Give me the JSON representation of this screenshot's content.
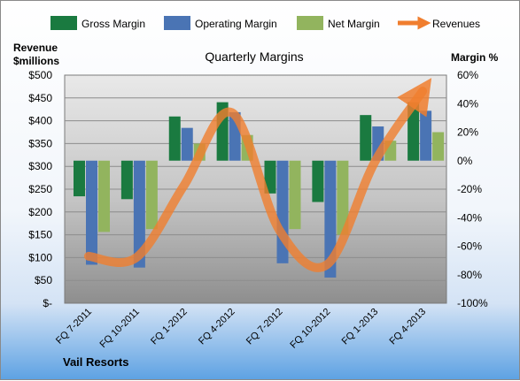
{
  "chart_data": {
    "type": "bar",
    "title": "Quarterly Margins",
    "company": "Vail Resorts",
    "categories": [
      "FQ 7-2011",
      "FQ 10-2011",
      "FQ 1-2012",
      "FQ 4-2012",
      "FQ 7-2012",
      "FQ 10-2012",
      "FQ 1-2013",
      "FQ 4-2013"
    ],
    "series": [
      {
        "name": "Gross Margin",
        "axis": "right",
        "color": "#1a7a40",
        "values": [
          -25,
          -27,
          31,
          41,
          -23,
          -29,
          32,
          41
        ]
      },
      {
        "name": "Operating Margin",
        "axis": "right",
        "color": "#4a74b4",
        "values": [
          -73,
          -75,
          23,
          34,
          -72,
          -82,
          24,
          35
        ]
      },
      {
        "name": "Net Margin",
        "axis": "right",
        "color": "#92b45e",
        "values": [
          -50,
          -48,
          12,
          18,
          -48,
          -52,
          14,
          20
        ]
      },
      {
        "name": "Revenues",
        "axis": "left",
        "type": "line",
        "color": "#f07e2e",
        "values": [
          103,
          100,
          258,
          418,
          160,
          85,
          310,
          465
        ]
      }
    ],
    "left_axis": {
      "label_line1": "Revenue",
      "label_line2": "$millions",
      "range": [
        0,
        500
      ],
      "ticks": [
        "$-",
        "$50",
        "$100",
        "$150",
        "$200",
        "$250",
        "$300",
        "$350",
        "$400",
        "$450",
        "$500"
      ]
    },
    "right_axis": {
      "label": "Margin %",
      "range": [
        -100,
        60
      ],
      "ticks": [
        "60%",
        "40%",
        "20%",
        "0%",
        "-20%",
        "-40%",
        "-60%",
        "-80%",
        "-100%"
      ]
    },
    "grid": true,
    "legend_position": "top"
  }
}
